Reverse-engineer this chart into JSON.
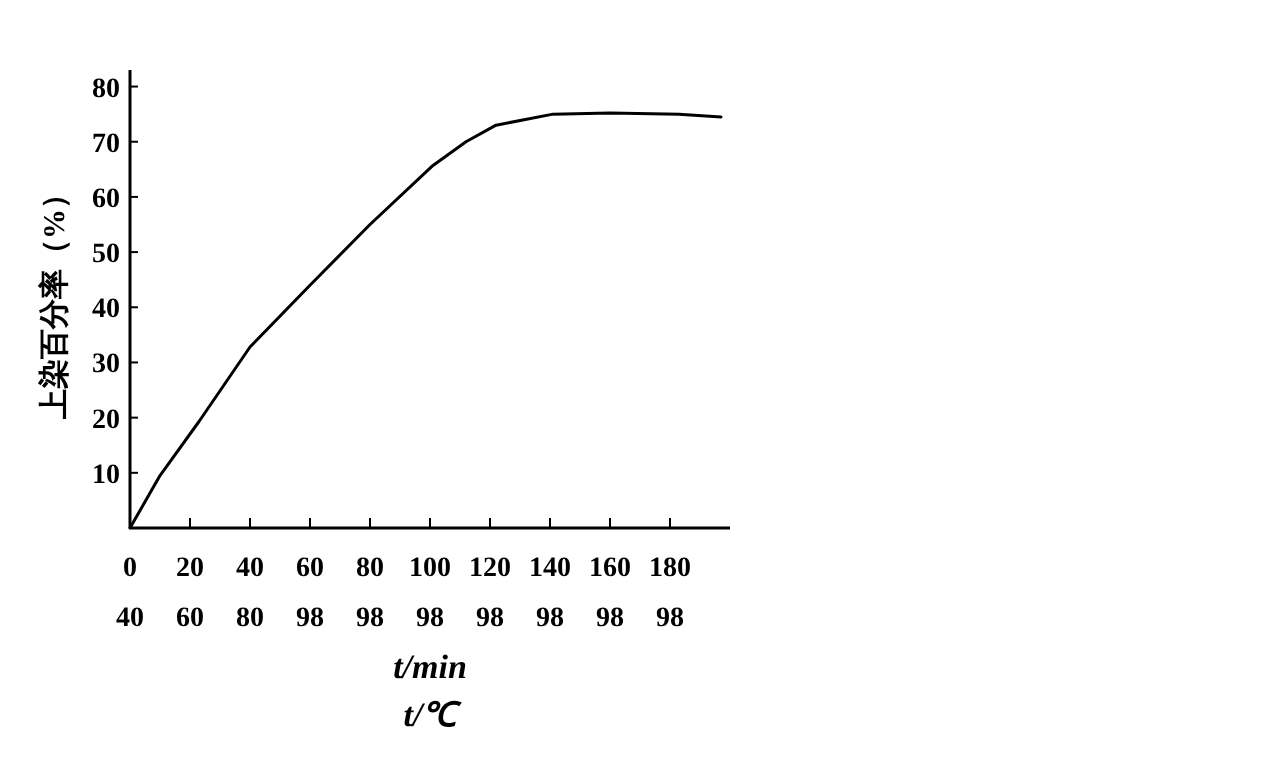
{
  "chart_data": {
    "type": "line",
    "ylabel": "上染百分率（%）",
    "xlabel": "t/min",
    "annotations": [
      "40",
      "60",
      "80",
      "98",
      "98",
      "98",
      "98",
      "98",
      "98",
      "98",
      "t/℃"
    ],
    "x": [
      0,
      10,
      23,
      40,
      60,
      80,
      101,
      112,
      122,
      141,
      160,
      183,
      197
    ],
    "series": [
      {
        "color": "#000000",
        "values": [
          0,
          9.5,
          19.3,
          32.8,
          44,
          55,
          65.7,
          70,
          73,
          75,
          75.2,
          75,
          74.5
        ]
      }
    ],
    "xlim": [
      0,
      200
    ],
    "xticks": [
      0,
      20,
      40,
      60,
      80,
      100,
      120,
      140,
      160,
      180
    ],
    "ylim": [
      0,
      83
    ],
    "yticks": [
      {
        "value": 0,
        "label": null
      },
      10,
      20,
      30,
      40,
      50,
      60,
      70,
      80
    ],
    "grid": false,
    "marker": "none",
    "line_style": "solid"
  }
}
